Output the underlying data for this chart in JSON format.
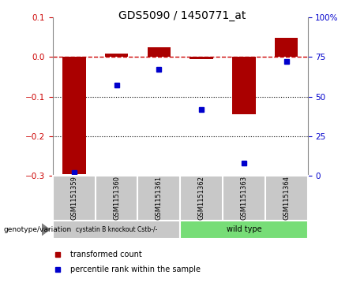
{
  "title": "GDS5090 / 1450771_at",
  "samples": [
    "GSM1151359",
    "GSM1151360",
    "GSM1151361",
    "GSM1151362",
    "GSM1151363",
    "GSM1151364"
  ],
  "red_bars": [
    -0.295,
    0.008,
    0.025,
    -0.005,
    -0.145,
    0.048
  ],
  "blue_dots": [
    2,
    57,
    67,
    42,
    8,
    72
  ],
  "ylim_left": [
    -0.3,
    0.1
  ],
  "ylim_right": [
    0,
    100
  ],
  "yticks_left": [
    -0.3,
    -0.2,
    -0.1,
    0.0,
    0.1
  ],
  "yticks_right": [
    0,
    25,
    50,
    75,
    100
  ],
  "ytick_labels_right": [
    "0",
    "25",
    "50",
    "75",
    "100%"
  ],
  "group_colors": [
    "#c8c8c8",
    "#77dd77"
  ],
  "group_labels": [
    "cystatin B knockout Cstb-/-",
    "wild type"
  ],
  "sample_box_color": "#c8c8c8",
  "bar_color": "#AA0000",
  "dot_color": "#0000CC",
  "hline_color": "#CC0000",
  "dotted_line_color": "#000000",
  "bg_color": "#ffffff",
  "plot_bg_color": "#ffffff",
  "genotype_label": "genotype/variation",
  "legend_red": "transformed count",
  "legend_blue": "percentile rank within the sample",
  "bar_width": 0.55
}
